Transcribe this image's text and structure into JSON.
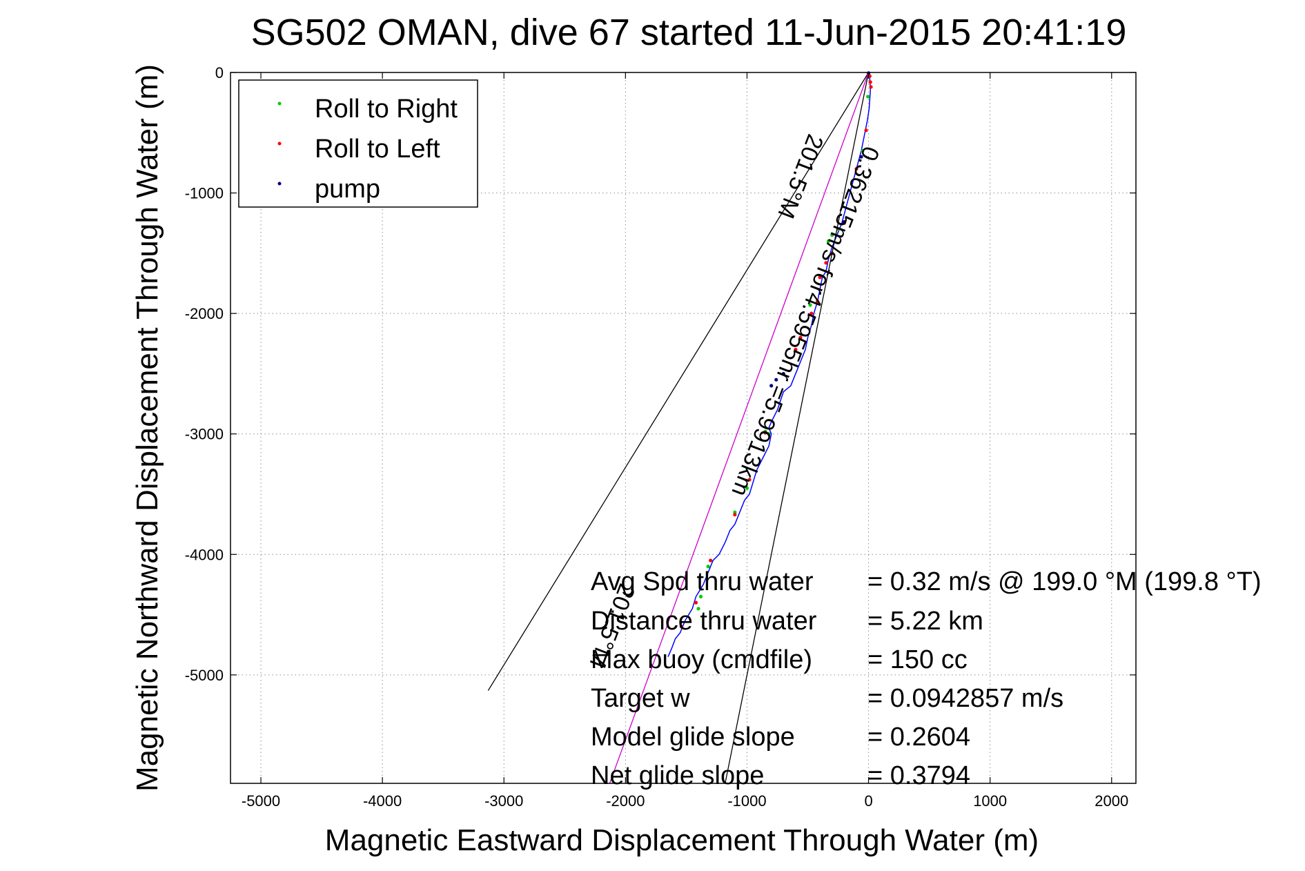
{
  "chart_data": {
    "type": "line",
    "title": "SG502 OMAN, dive 67 started 11-Jun-2015 20:41:19",
    "xlabel": "Magnetic Eastward Displacement Through Water (m)",
    "ylabel": "Magnetic Northward Displacement Through Water (m)",
    "xlim": [
      -5250,
      2200
    ],
    "ylim": [
      -5900,
      0
    ],
    "xticks": [
      -5000,
      -4000,
      -3000,
      -2000,
      -1000,
      0,
      1000,
      2000
    ],
    "yticks": [
      0,
      -1000,
      -2000,
      -3000,
      -4000,
      -5000
    ],
    "grid": true,
    "legend": {
      "placement": "top-left",
      "entries": [
        {
          "label": "Roll to Right",
          "color": "#00cc00"
        },
        {
          "label": "Roll to Left",
          "color": "#ff0000"
        },
        {
          "label": "pump",
          "color": "#000080"
        }
      ]
    },
    "track_color": "#0000ff",
    "track": {
      "x": [
        0,
        10,
        15,
        5,
        -10,
        -30,
        -60,
        -100,
        -140,
        -180,
        -220,
        -260,
        -300,
        -330,
        -350,
        -380,
        -400,
        -420,
        -450,
        -470,
        -500,
        -520,
        -560,
        -600,
        -640,
        -700,
        -750,
        -800,
        -820,
        -800,
        -820,
        -870,
        -920,
        -950,
        -980,
        -1020,
        -1060,
        -1100,
        -1140,
        -1180,
        -1230,
        -1280,
        -1320,
        -1360,
        -1390,
        -1420,
        -1450,
        -1480,
        -1510,
        -1550,
        -1590,
        -1620,
        -1650
      ],
      "y": [
        0,
        -50,
        -150,
        -300,
        -400,
        -500,
        -650,
        -800,
        -950,
        -1100,
        -1250,
        -1350,
        -1450,
        -1550,
        -1650,
        -1700,
        -1800,
        -1900,
        -2000,
        -2100,
        -2200,
        -2300,
        -2400,
        -2500,
        -2600,
        -2650,
        -2800,
        -2900,
        -2950,
        -3000,
        -3100,
        -3200,
        -3300,
        -3400,
        -3500,
        -3550,
        -3650,
        -3750,
        -3800,
        -3900,
        -4000,
        -4050,
        -4150,
        -4250,
        -4300,
        -4350,
        -4450,
        -4500,
        -4550,
        -4650,
        -4700,
        -4780,
        -4850
      ]
    },
    "markers": {
      "roll_right": {
        "x": [
          -5,
          -50,
          -250,
          -300,
          -330,
          -480,
          -820,
          -850,
          -1000,
          -1100,
          -1320,
          -1380,
          -1400
        ],
        "y": [
          -200,
          -650,
          -1300,
          -1350,
          -1400,
          -1930,
          -3000,
          -2980,
          -3450,
          -3650,
          -4100,
          -4350,
          -4450
        ]
      },
      "roll_left": {
        "x": [
          10,
          15,
          20,
          -20,
          -100,
          -200,
          -300,
          -400,
          -350,
          -420,
          -470,
          -560,
          -600,
          -850,
          -980,
          -1100,
          -1300,
          -1420,
          -1540
        ],
        "y": [
          -30,
          -80,
          -120,
          -480,
          -800,
          -1250,
          -1500,
          -1700,
          -1580,
          -1900,
          -2000,
          -2200,
          -2300,
          -2990,
          -3380,
          -3670,
          -4050,
          -4400,
          -4600
        ]
      },
      "pump": {
        "x": [
          0,
          -60,
          -200,
          -700,
          -760,
          -800
        ],
        "y": [
          -5,
          -700,
          -1240,
          -2500,
          -2550,
          -2600
        ]
      }
    },
    "lines": [
      {
        "x": [
          0,
          -3130
        ],
        "y": [
          0,
          -5130
        ],
        "color": "#000000"
      },
      {
        "x": [
          0,
          -1180
        ],
        "y": [
          0,
          -5900
        ],
        "color": "#000000"
      },
      {
        "x": [
          0,
          -2130
        ],
        "y": [
          0,
          -5900
        ],
        "color": "#cc00cc"
      }
    ],
    "annotations": {
      "along_line": [
        {
          "text": "0.36215m/s for4.5955hr =5.9913km",
          "x": -30,
          "y": -600,
          "angle": 291
        },
        {
          "text": "201.5°M",
          "x": -490,
          "y": -500,
          "angle": 291
        },
        {
          "text": "201.5°M",
          "x": -2040,
          "y": -4230,
          "angle": 291
        }
      ],
      "stats": [
        {
          "label": "Avg Spd thru water",
          "value": "=  0.32 m/s @ 199.0 °M (199.8 °T)"
        },
        {
          "label": "Distance thru water",
          "value": "=  5.22 km"
        },
        {
          "label": "Max buoy (cmdfile)",
          "value": "= 150 cc"
        },
        {
          "label": "Target w",
          "value": "= 0.0942857 m/s"
        },
        {
          "label": "Model glide slope",
          "value": "= 0.2604"
        },
        {
          "label": "Net glide slope",
          "value": "= 0.3794"
        }
      ]
    }
  }
}
